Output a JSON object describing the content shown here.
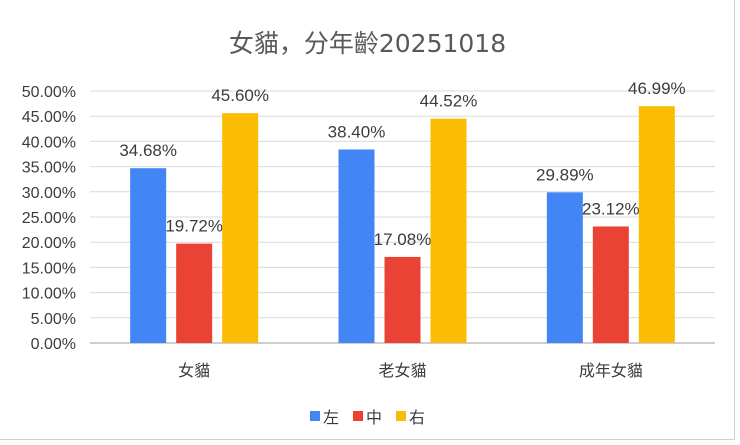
{
  "chart_data": {
    "type": "bar",
    "title": "女貓，分年齡20251018",
    "categories": [
      "女貓",
      "老女貓",
      "成年女貓"
    ],
    "series": [
      {
        "name": "左",
        "color": "#4285F4",
        "values": [
          34.68,
          38.4,
          29.89
        ],
        "labels": [
          "34.68%",
          "38.40%",
          "29.89%"
        ]
      },
      {
        "name": "中",
        "color": "#EA4335",
        "values": [
          19.72,
          17.08,
          23.12
        ],
        "labels": [
          "19.72%",
          "17.08%",
          "23.12%"
        ]
      },
      {
        "name": "右",
        "color": "#FBBC04",
        "values": [
          45.6,
          44.52,
          46.99
        ],
        "labels": [
          "45.60%",
          "44.52%",
          "46.99%"
        ]
      }
    ],
    "y_ticks": [
      "0.00%",
      "5.00%",
      "10.00%",
      "15.00%",
      "20.00%",
      "25.00%",
      "30.00%",
      "35.00%",
      "40.00%",
      "45.00%",
      "50.00%"
    ],
    "ylim": [
      0,
      50
    ],
    "grid": true,
    "legend_position": "bottom"
  }
}
